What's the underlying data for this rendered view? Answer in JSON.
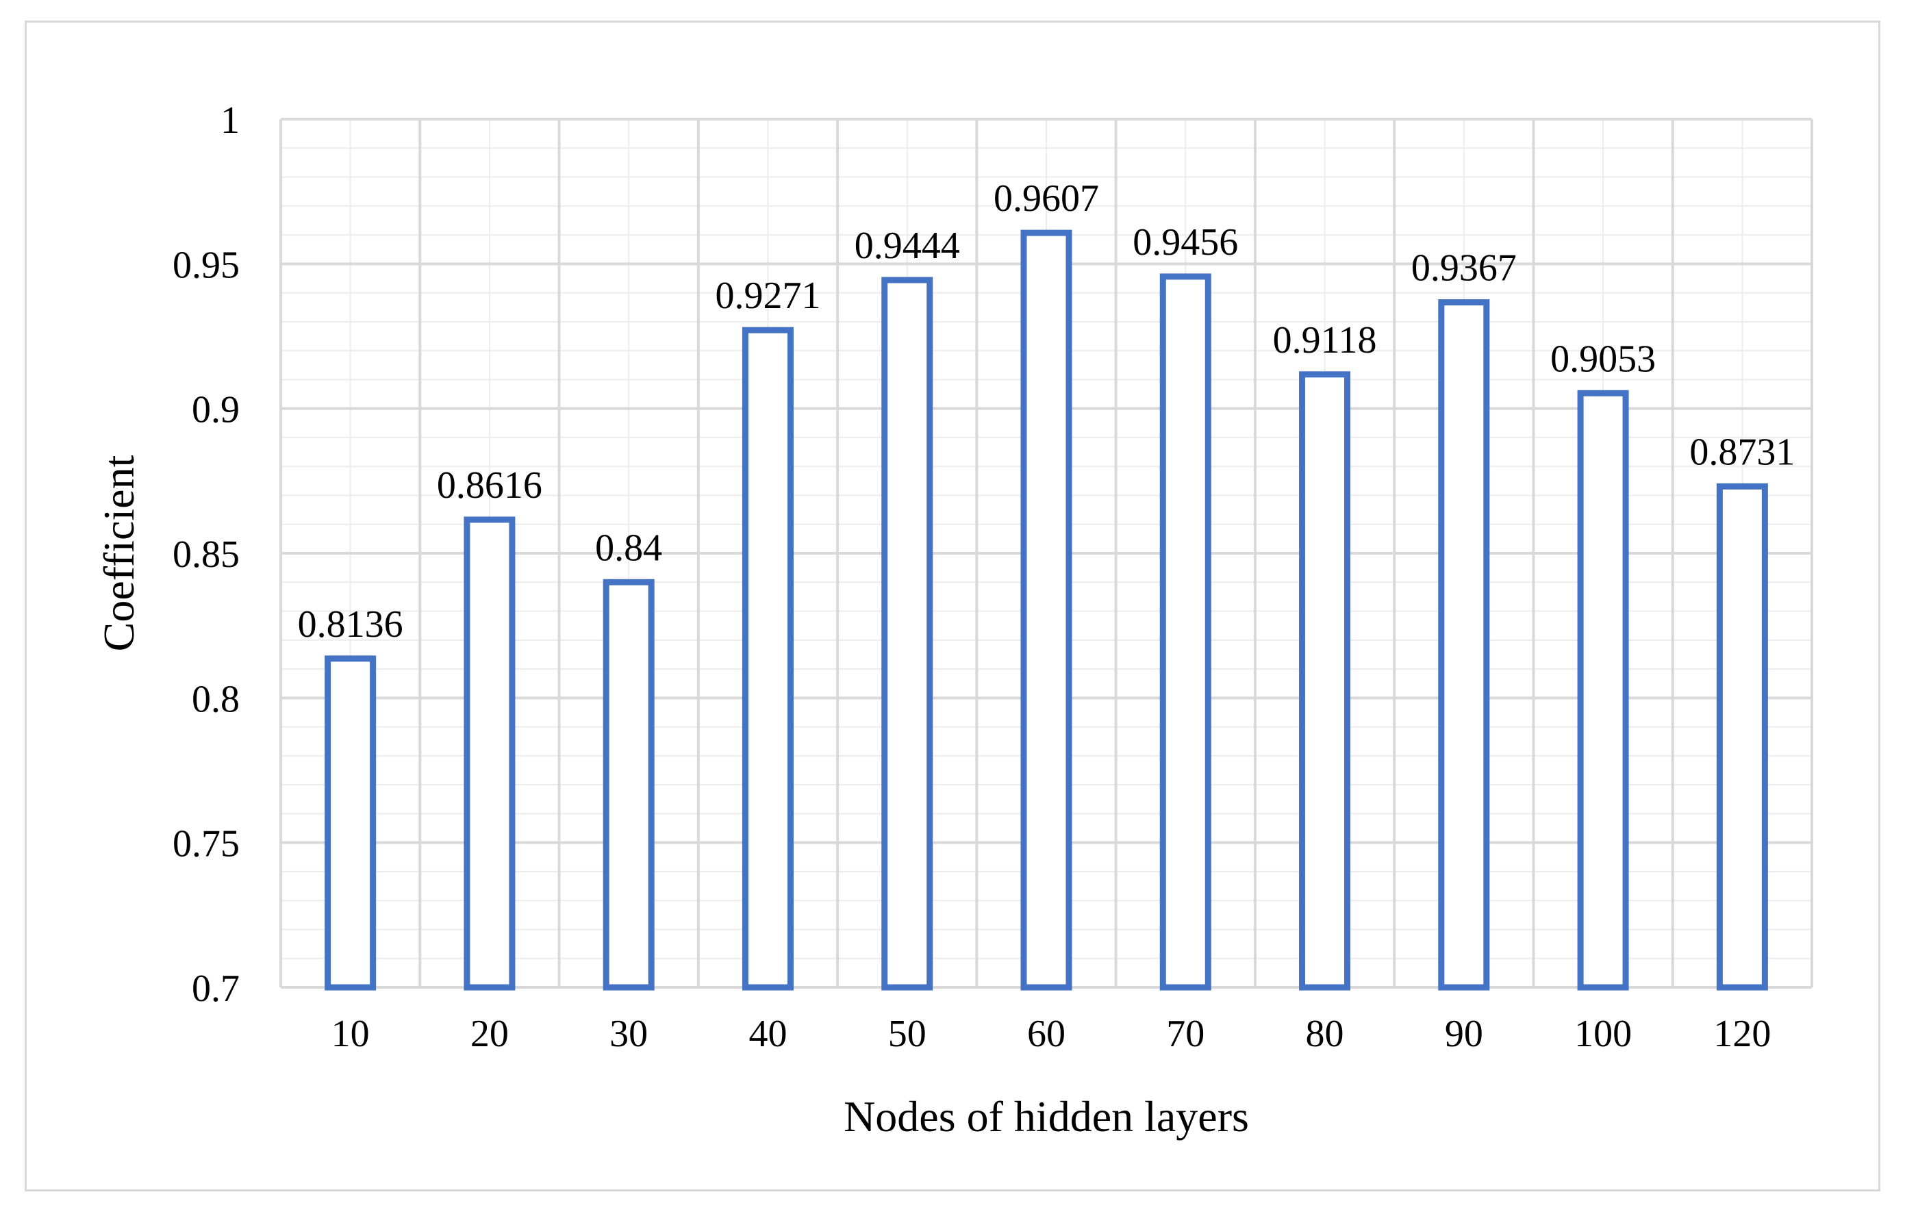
{
  "chart_data": {
    "type": "bar",
    "categories": [
      "10",
      "20",
      "30",
      "40",
      "50",
      "60",
      "70",
      "80",
      "90",
      "100",
      "120"
    ],
    "values": [
      0.8136,
      0.8616,
      0.84,
      0.9271,
      0.9444,
      0.9607,
      0.9456,
      0.9118,
      0.9367,
      0.9053,
      0.8731
    ],
    "data_labels": [
      "0.8136",
      "0.8616",
      "0.84",
      "0.9271",
      "0.9444",
      "0.9607",
      "0.9456",
      "0.9118",
      "0.9367",
      "0.9053",
      "0.8731"
    ],
    "title": "",
    "xlabel": "Nodes of hidden layers",
    "ylabel": "Coefficient",
    "ylim": [
      0.7,
      1
    ],
    "yticks": [
      0.7,
      0.75,
      0.8,
      0.85,
      0.9,
      0.95,
      1
    ],
    "ytick_labels": [
      "0.7",
      "0.75",
      "0.8",
      "0.85",
      "0.9",
      "0.95",
      "1"
    ],
    "grid": true,
    "bar_style": "outline",
    "colors": {
      "bar_stroke": "#4472c4",
      "grid_major": "#d9d9d9",
      "grid_minor": "#ececec",
      "frame": "#d9d9d9"
    }
  }
}
